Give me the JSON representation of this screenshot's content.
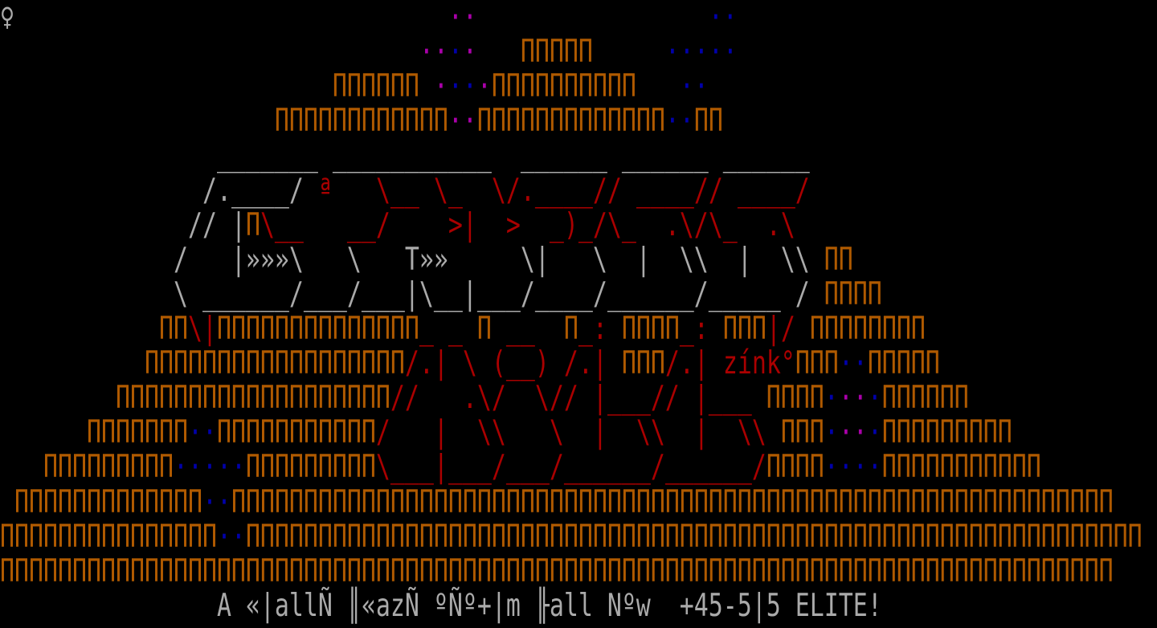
{
  "screen": "ANSI text-mode art",
  "palette": {
    "g": "#aaaaaa",
    "r": "#aa0000",
    "o": "#b05a00",
    "b": "#0000aa",
    "m": "#aa00aa"
  },
  "rows": [
    {
      "runs": [
        {
          "t": "♀",
          "c": "g"
        },
        {
          "t": "                              "
        },
        {
          "t": "··",
          "c": "m"
        },
        {
          "t": "                "
        },
        {
          "t": "··",
          "c": "b"
        }
      ]
    },
    {
      "runs": [
        {
          "t": "                             "
        },
        {
          "t": "··",
          "c": "m"
        },
        {
          "t": "·",
          "c": "b"
        },
        {
          "t": "·",
          "c": "m"
        },
        {
          "t": "   "
        },
        {
          "t": "ΠΠΠΠΠ",
          "c": "o"
        },
        {
          "t": "     "
        },
        {
          "t": "·····",
          "c": "b"
        }
      ]
    },
    {
      "runs": [
        {
          "t": "                       "
        },
        {
          "t": "ΠΠΠΠΠΠ",
          "c": "o"
        },
        {
          "t": " "
        },
        {
          "t": "·",
          "c": "m"
        },
        {
          "t": "··",
          "c": "b"
        },
        {
          "t": "·",
          "c": "m"
        },
        {
          "t": "ΠΠΠΠΠΠΠΠΠΠ",
          "c": "o"
        },
        {
          "t": "   "
        },
        {
          "t": "··",
          "c": "b"
        }
      ]
    },
    {
      "runs": [
        {
          "t": "                   "
        },
        {
          "t": "ΠΠΠΠΠΠΠΠΠΠΠΠ",
          "c": "o"
        },
        {
          "t": "··",
          "c": "m"
        },
        {
          "t": "ΠΠΠΠΠΠΠΠΠΠΠΠΠ",
          "c": "o"
        },
        {
          "t": "··",
          "c": "b"
        },
        {
          "t": "ΠΠ",
          "c": "o"
        }
      ]
    },
    {
      "runs": [
        {
          "t": "               "
        },
        {
          "t": "_______ ___________  ______ ______ ______",
          "c": "g"
        }
      ]
    },
    {
      "runs": [
        {
          "t": "              "
        },
        {
          "t": "/.____/",
          "c": "g"
        },
        {
          "t": " "
        },
        {
          "t": "ª",
          "c": "r"
        },
        {
          "t": "   "
        },
        {
          "t": "\\__ \\_  \\/.____// ____// ____/",
          "c": "r"
        }
      ]
    },
    {
      "runs": [
        {
          "t": "             "
        },
        {
          "t": "// |",
          "c": "g"
        },
        {
          "t": "Π",
          "c": "o"
        },
        {
          "t": "\\__   __/    >|  >  _)_/\\_  .\\/\\_  .\\",
          "c": "r"
        }
      ]
    },
    {
      "runs": [
        {
          "t": "            "
        },
        {
          "t": "/   |»»»\\   \\   T»»     \\|   \\  |  \\\\  |  \\\\",
          "c": "g"
        },
        {
          "t": " "
        },
        {
          "t": "ΠΠ",
          "c": "o"
        }
      ]
    },
    {
      "runs": [
        {
          "t": "            "
        },
        {
          "t": "\\ ______/___/___|\\__|___/____/______/_____ /",
          "c": "g"
        },
        {
          "t": " "
        },
        {
          "t": "ΠΠΠΠ",
          "c": "o"
        }
      ]
    },
    {
      "runs": [
        {
          "t": "           "
        },
        {
          "t": "ΠΠ",
          "c": "o"
        },
        {
          "t": "\\|",
          "c": "r"
        },
        {
          "t": "ΠΠΠΠΠΠΠΠΠΠΠΠΠΠ",
          "c": "o"
        },
        {
          "t": "_ _ ",
          "c": "r"
        },
        {
          "t": "Π",
          "c": "o"
        },
        {
          "t": " __  ",
          "c": "r"
        },
        {
          "t": "Π",
          "c": "o"
        },
        {
          "t": "_: ",
          "c": "r"
        },
        {
          "t": "ΠΠΠΠ",
          "c": "o"
        },
        {
          "t": "_: ",
          "c": "r"
        },
        {
          "t": "ΠΠΠ",
          "c": "o"
        },
        {
          "t": "|/ ",
          "c": "r"
        },
        {
          "t": "ΠΠΠΠΠΠΠΠ",
          "c": "o"
        }
      ]
    },
    {
      "runs": [
        {
          "t": "          "
        },
        {
          "t": "ΠΠΠΠΠΠΠΠΠΠΠΠΠΠΠΠΠΠ",
          "c": "o"
        },
        {
          "t": "/.| \\ (__) /.| ",
          "c": "r"
        },
        {
          "t": "ΠΠΠ",
          "c": "o"
        },
        {
          "t": "/.| zínk°",
          "c": "r"
        },
        {
          "t": "ΠΠΠ",
          "c": "o"
        },
        {
          "t": "··",
          "c": "b"
        },
        {
          "t": "ΠΠΠΠΠ",
          "c": "o"
        }
      ]
    },
    {
      "runs": [
        {
          "t": "        "
        },
        {
          "t": "ΠΠΠΠΠΠΠΠΠΠΠΠΠΠΠΠΠΠΠ",
          "c": "o"
        },
        {
          "t": "//   .\\/  \\// |___// |___ ",
          "c": "r"
        },
        {
          "t": "ΠΠΠΠ",
          "c": "o"
        },
        {
          "t": "·",
          "c": "b"
        },
        {
          "t": "··",
          "c": "m"
        },
        {
          "t": "·",
          "c": "b"
        },
        {
          "t": "ΠΠΠΠΠΠ",
          "c": "o"
        }
      ]
    },
    {
      "runs": [
        {
          "t": "      "
        },
        {
          "t": "ΠΠΠΠΠΠΠ",
          "c": "o"
        },
        {
          "t": "··",
          "c": "b"
        },
        {
          "t": "ΠΠΠΠΠΠΠΠΠΠΠ",
          "c": "o"
        },
        {
          "t": "/   |  \\\\   \\  |  \\\\  |  \\\\ ",
          "c": "r"
        },
        {
          "t": "ΠΠΠ",
          "c": "o"
        },
        {
          "t": "·",
          "c": "b"
        },
        {
          "t": "··",
          "c": "m"
        },
        {
          "t": "·",
          "c": "b"
        },
        {
          "t": "ΠΠΠΠΠΠΠΠΠ",
          "c": "o"
        }
      ]
    },
    {
      "runs": [
        {
          "t": "   "
        },
        {
          "t": "ΠΠΠΠΠΠΠΠΠ",
          "c": "o"
        },
        {
          "t": "·····",
          "c": "b"
        },
        {
          "t": "ΠΠΠΠΠΠΠΠΠ",
          "c": "o"
        },
        {
          "t": "\\___|___/___/______/______/",
          "c": "r"
        },
        {
          "t": "ΠΠΠΠ",
          "c": "o"
        },
        {
          "t": "····",
          "c": "b"
        },
        {
          "t": "ΠΠΠΠΠΠΠΠΠΠΠ",
          "c": "o"
        }
      ]
    },
    {
      "runs": [
        {
          "t": " "
        },
        {
          "t": "ΠΠΠΠΠΠΠΠΠΠΠΠΠ",
          "c": "o"
        },
        {
          "t": "··",
          "c": "b"
        },
        {
          "t": "ΠΠΠΠΠΠΠΠΠΠΠΠΠΠΠΠΠΠΠΠΠΠΠΠΠΠΠΠΠΠΠΠΠΠΠΠΠΠΠΠΠΠΠΠΠΠΠΠΠΠΠΠΠΠΠΠΠΠΠΠΠ",
          "c": "o"
        }
      ]
    },
    {
      "runs": [
        {
          "t": "ΠΠΠΠΠΠΠΠΠΠΠΠΠΠΠ",
          "c": "o"
        },
        {
          "t": "··",
          "c": "b"
        },
        {
          "t": "ΠΠΠΠΠΠΠΠΠΠΠΠΠΠΠΠΠΠΠΠΠΠΠΠΠΠΠΠΠΠΠΠΠΠΠΠΠΠΠΠΠΠΠΠΠΠΠΠΠΠΠΠΠΠΠΠΠΠΠΠΠΠ",
          "c": "o"
        }
      ]
    },
    {
      "runs": [
        {
          "t": "ΠΠΠΠΠΠΠΠΠΠΠΠΠΠΠΠΠΠΠΠΠΠΠΠΠΠΠΠΠΠΠΠΠΠΠΠΠΠΠΠΠΠΠΠΠΠΠΠΠΠΠΠΠΠΠΠΠΠΠΠΠΠΠΠΠΠΠΠΠΠΠΠΠΠΠΠΠ",
          "c": "o"
        }
      ]
    },
    {
      "runs": [
        {
          "t": "               "
        },
        {
          "t": "A «|allÑ ║«azÑ ºÑº+|m ╟all Nºw  +45-5|5 ELITE!",
          "c": "g"
        }
      ]
    }
  ]
}
